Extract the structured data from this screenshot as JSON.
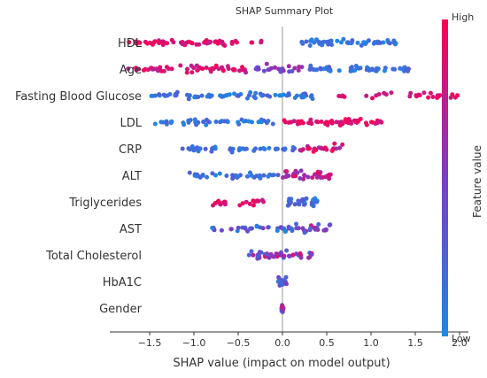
{
  "chart_data": {
    "type": "scatter",
    "title": "SHAP Summary Plot",
    "xlabel": "SHAP value (impact on model output)",
    "ylabel": "",
    "xlim": [
      -1.95,
      2.1
    ],
    "xticks": [
      -1.5,
      -1.0,
      -0.5,
      0.0,
      0.5,
      1.0,
      1.5,
      2.0
    ],
    "xtick_labels": [
      "−1.5",
      "−1.0",
      "−0.5",
      "0.0",
      "0.5",
      "1.0",
      "1.5",
      "2.0"
    ],
    "grid": false,
    "colorbar": {
      "label": "Feature value",
      "high_label": "High",
      "low_label": "Low",
      "low_color": "#1e88e5",
      "mid_color": "#7c3cc6",
      "high_color": "#ff0052"
    },
    "features": [
      {
        "name": "HDL",
        "segments": [
          {
            "min": -1.8,
            "max": -0.2,
            "n": 60,
            "lo": 0.75,
            "hi": 1.0
          },
          {
            "min": 0.2,
            "max": 1.3,
            "n": 55,
            "lo": 0.0,
            "hi": 0.25
          }
        ]
      },
      {
        "name": "Age",
        "segments": [
          {
            "min": -1.75,
            "max": -0.4,
            "n": 55,
            "lo": 0.7,
            "hi": 1.0
          },
          {
            "min": -0.3,
            "max": 0.25,
            "n": 25,
            "lo": 0.35,
            "hi": 0.7
          },
          {
            "min": 0.3,
            "max": 1.45,
            "n": 55,
            "lo": 0.0,
            "hi": 0.3
          }
        ]
      },
      {
        "name": "Fasting Blood Glucose",
        "segments": [
          {
            "min": -1.55,
            "max": 0.4,
            "n": 70,
            "lo": 0.0,
            "hi": 0.3
          },
          {
            "min": 0.5,
            "max": 2.0,
            "n": 30,
            "lo": 0.75,
            "hi": 1.0
          }
        ]
      },
      {
        "name": "LDL",
        "segments": [
          {
            "min": -1.5,
            "max": -0.1,
            "n": 45,
            "lo": 0.0,
            "hi": 0.3
          },
          {
            "min": 0.0,
            "max": 1.15,
            "n": 60,
            "lo": 0.75,
            "hi": 1.0
          }
        ]
      },
      {
        "name": "CRP",
        "segments": [
          {
            "min": -1.15,
            "max": 0.15,
            "n": 45,
            "lo": 0.0,
            "hi": 0.3
          },
          {
            "min": 0.15,
            "max": 0.7,
            "n": 25,
            "lo": 0.6,
            "hi": 1.0
          }
        ]
      },
      {
        "name": "ALT",
        "segments": [
          {
            "min": -1.05,
            "max": 0.0,
            "n": 35,
            "lo": 0.0,
            "hi": 0.3
          },
          {
            "min": 0.0,
            "max": 0.55,
            "n": 35,
            "lo": 0.5,
            "hi": 0.9
          }
        ]
      },
      {
        "name": "Triglycerides",
        "segments": [
          {
            "min": -0.8,
            "max": -0.2,
            "n": 20,
            "lo": 0.75,
            "hi": 1.0
          },
          {
            "min": 0.05,
            "max": 0.4,
            "n": 35,
            "lo": 0.0,
            "hi": 0.35
          }
        ]
      },
      {
        "name": "AST",
        "segments": [
          {
            "min": -0.8,
            "max": 0.15,
            "n": 35,
            "lo": 0.0,
            "hi": 0.55
          },
          {
            "min": 0.15,
            "max": 0.55,
            "n": 25,
            "lo": 0.1,
            "hi": 0.8
          }
        ]
      },
      {
        "name": "Total Cholesterol",
        "segments": [
          {
            "min": -0.4,
            "max": 0.35,
            "n": 45,
            "lo": 0.2,
            "hi": 0.9
          }
        ]
      },
      {
        "name": "HbA1C",
        "segments": [
          {
            "min": -0.05,
            "max": 0.05,
            "n": 25,
            "lo": 0.1,
            "hi": 0.6
          }
        ]
      },
      {
        "name": "Gender",
        "segments": [
          {
            "min": -0.01,
            "max": 0.01,
            "n": 20,
            "lo": 0.3,
            "hi": 0.9
          }
        ]
      }
    ]
  }
}
